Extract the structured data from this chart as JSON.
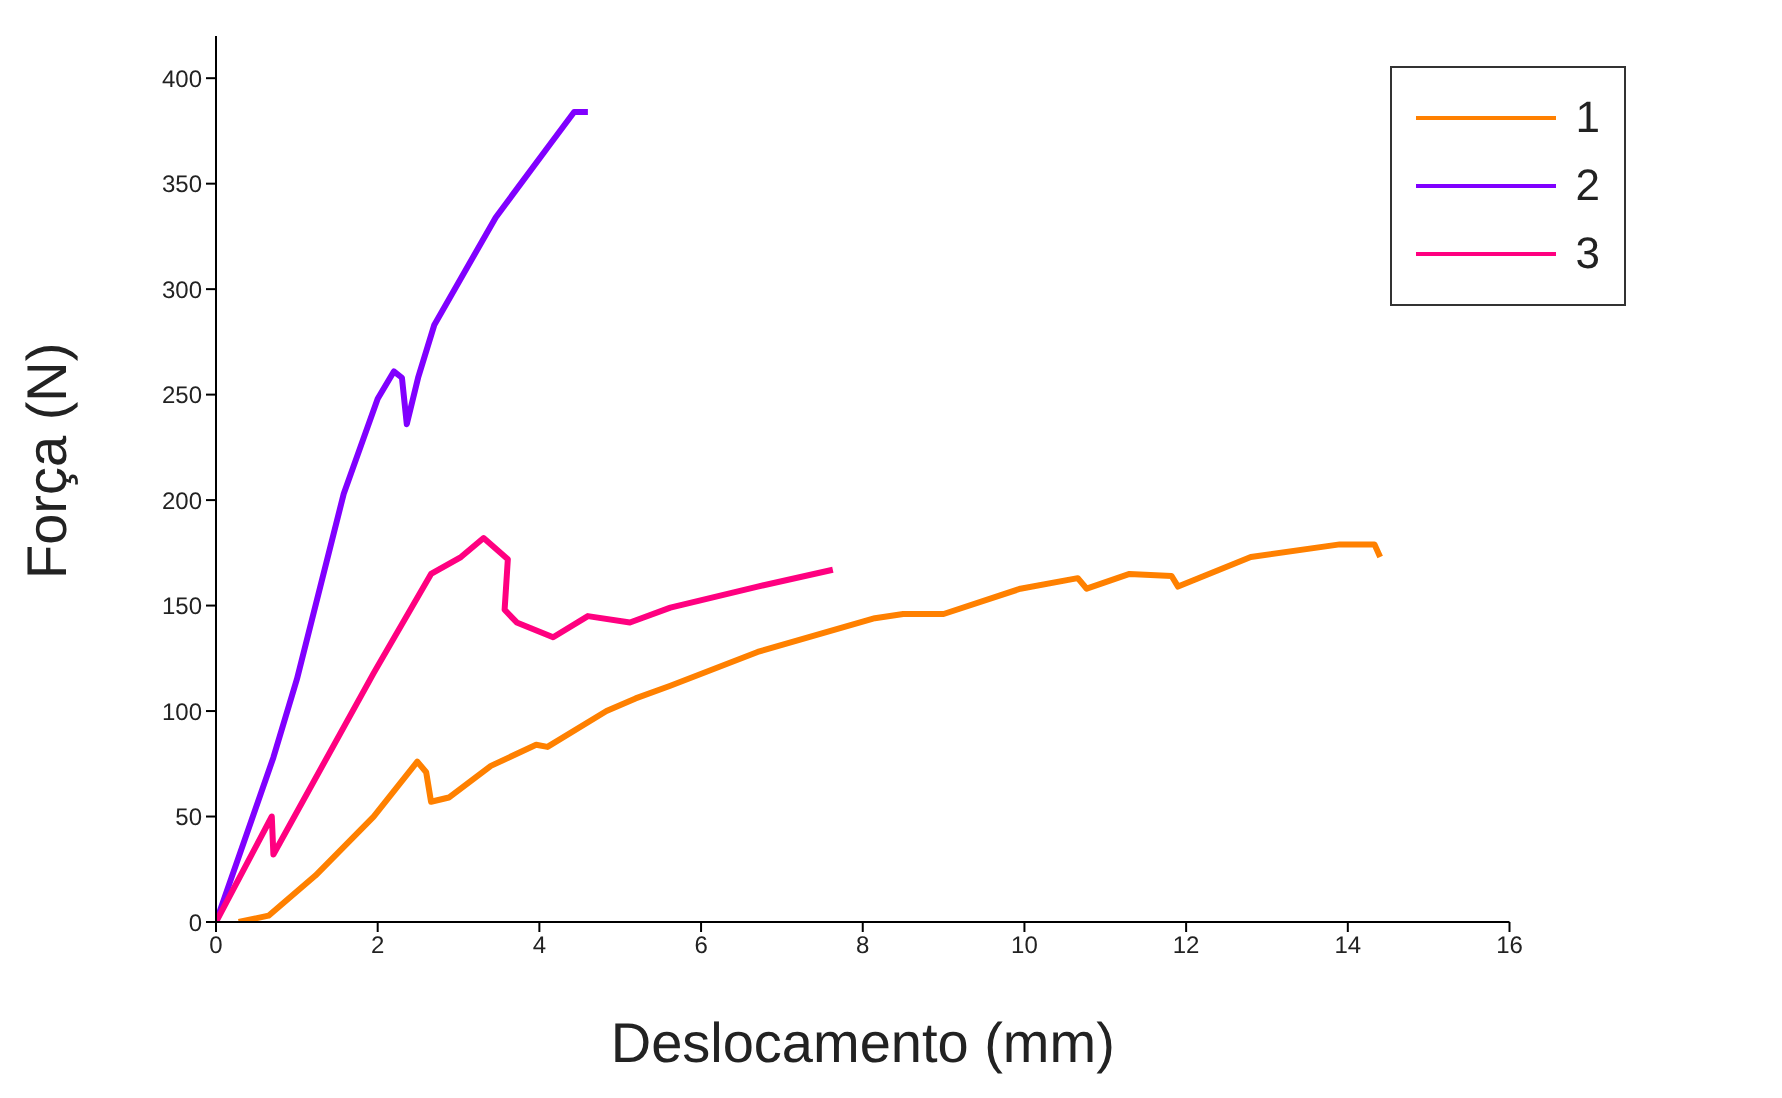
{
  "chart_data": {
    "type": "line",
    "xlabel": "Deslocamento (mm)",
    "ylabel": "Força (N)",
    "xlim": [
      0,
      16
    ],
    "xticks": [
      0,
      2,
      4,
      6,
      8,
      10,
      12,
      14,
      16
    ],
    "ylim": [
      0,
      420
    ],
    "yticks": [
      0,
      50,
      100,
      150,
      200,
      250,
      300,
      350,
      400
    ],
    "grid": false,
    "legend": "top right",
    "marker": "none",
    "line_style": "solid",
    "series": [
      {
        "name": "1",
        "color": "#ff8000",
        "x": [
          0.28,
          0.65,
          1.23,
          1.95,
          2.49,
          2.6,
          2.66,
          2.88,
          3.4,
          3.96,
          4.1,
          4.83,
          5.19,
          5.62,
          6.7,
          8.15,
          8.5,
          9.0,
          9.95,
          10.66,
          10.77,
          11.3,
          11.82,
          11.9,
          12.8,
          13.9,
          14.33,
          14.4
        ],
        "values": [
          0,
          3,
          22,
          50,
          76,
          71,
          57,
          59,
          74,
          84,
          83,
          100,
          106,
          112,
          128,
          144,
          146,
          146,
          158,
          163,
          158,
          165,
          164,
          159,
          173,
          179,
          179,
          173
        ]
      },
      {
        "name": "2",
        "color": "#8000ff",
        "x": [
          0,
          0.71,
          1.0,
          1.58,
          2.0,
          2.2,
          2.3,
          2.36,
          2.5,
          2.7,
          3.46,
          4.1,
          4.43,
          4.6
        ],
        "values": [
          0,
          78,
          115,
          203,
          248,
          261,
          258,
          236,
          258,
          283,
          334,
          367,
          384,
          384
        ]
      },
      {
        "name": "3",
        "color": "#ff0080",
        "x": [
          0,
          0.69,
          0.71,
          1.95,
          2.66,
          3.03,
          3.31,
          3.61,
          3.57,
          3.72,
          4.17,
          4.6,
          5.12,
          5.62,
          6.7,
          7.63
        ],
        "values": [
          0,
          50,
          32,
          118,
          165,
          173,
          182,
          172,
          148,
          142,
          135,
          145,
          142,
          149,
          159,
          167
        ]
      }
    ]
  }
}
